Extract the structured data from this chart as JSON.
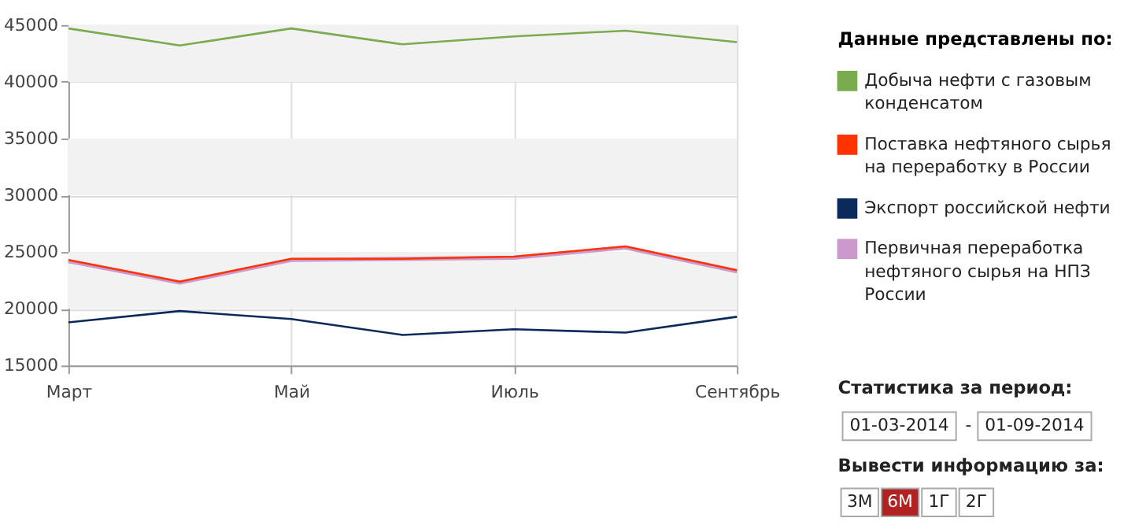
{
  "chart_data": {
    "type": "line",
    "categories": [
      "Март",
      null,
      "Май",
      null,
      "Июль",
      null,
      "Сентябрь"
    ],
    "ylim": [
      15000,
      45000
    ],
    "yticks": [
      15000,
      20000,
      25000,
      30000,
      35000,
      40000,
      45000
    ],
    "grid": true,
    "legend": "right",
    "legend_title": "Данные представлены по:",
    "bands": [
      {
        "axis": "y",
        "from": 20000,
        "to": 25000,
        "color": "#f2f2f2"
      },
      {
        "axis": "y",
        "from": 30000,
        "to": 35000,
        "color": "#f2f2f2"
      },
      {
        "axis": "y",
        "from": 40000,
        "to": 45000,
        "color": "#f2f2f2"
      }
    ],
    "series": [
      {
        "name": "Добыча нефти с газовым конденсатом",
        "color": "#7aab4f",
        "values": [
          44700,
          43200,
          44700,
          43300,
          44000,
          44500,
          43500
        ]
      },
      {
        "name": "Поставка нефтяного сырья на переработку в России",
        "color": "#ff3300",
        "values": [
          24300,
          22400,
          24400,
          24400,
          24600,
          25500,
          23400
        ]
      },
      {
        "name": "Экспорт российской нефти",
        "color": "#0a2a5c",
        "values": [
          18800,
          19800,
          19100,
          17700,
          18200,
          17900,
          19300
        ]
      },
      {
        "name": "Первичная переработка нефтяного сырья на НПЗ России",
        "color": "#cc99cc",
        "values": [
          24200,
          22300,
          24300,
          24400,
          24500,
          25400,
          23300
        ]
      }
    ],
    "annotations": [
      "Статистика за период:",
      "01-03-2014",
      "-",
      "01-09-2014",
      "Вывести информацию за:",
      "3М",
      "6М",
      "1Г",
      "2Г"
    ]
  }
}
